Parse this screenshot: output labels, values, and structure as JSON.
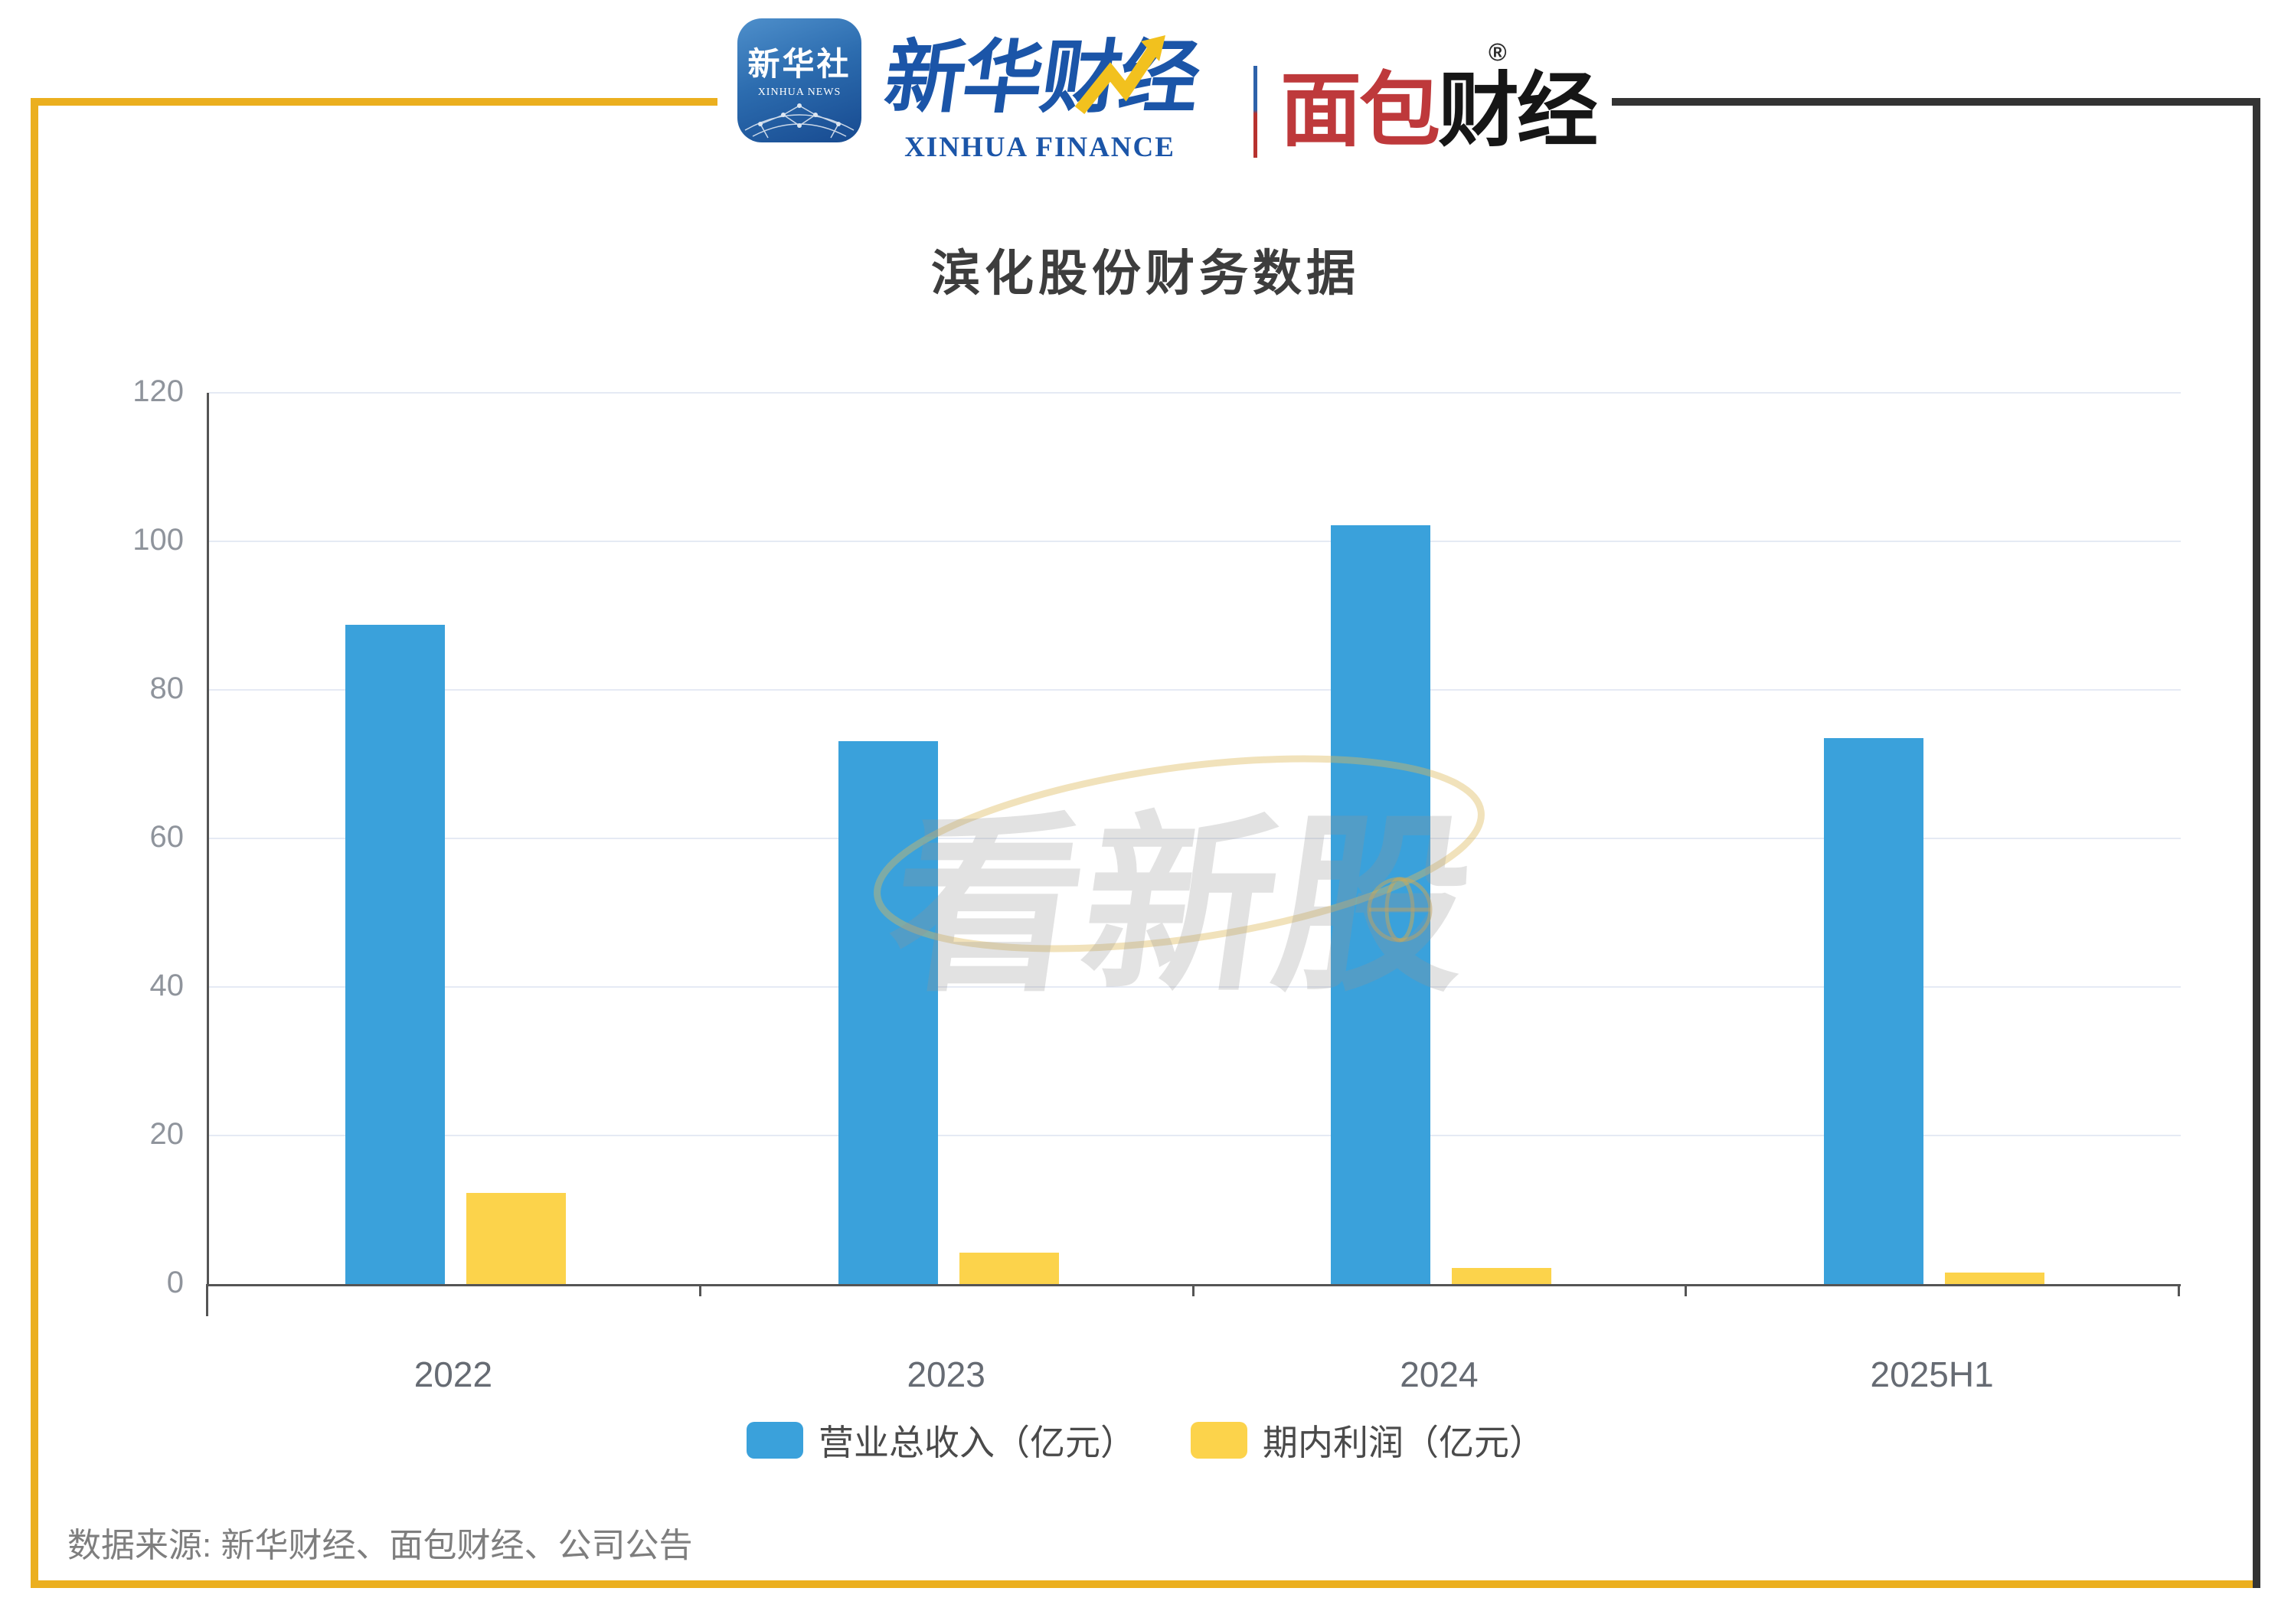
{
  "frame": {
    "yellow": "#EBAF1F",
    "black": "#333333"
  },
  "header": {
    "xinhua_app": {
      "line1": "新华社",
      "line2": "XINHUA NEWS"
    },
    "xinhua_finance": {
      "cn": "新华财经",
      "en": "XINHUA FINANCE"
    },
    "bread_finance": {
      "cn_red": "面包",
      "cn_black": "财经",
      "reg": "®"
    }
  },
  "chart_data": {
    "type": "bar",
    "title": "滨化股份财务数据",
    "categories": [
      "2022",
      "2023",
      "2024",
      "2025H1"
    ],
    "series": [
      {
        "name": "营业总收入（亿元）",
        "color": "#3AA1DB",
        "values": [
          88.8,
          73.1,
          102.2,
          73.5
        ]
      },
      {
        "name": "期内利润（亿元）",
        "color": "#FCD34B",
        "values": [
          12.3,
          4.2,
          2.2,
          1.5
        ]
      }
    ],
    "ylim": [
      0,
      120
    ],
    "yticks": [
      0,
      20,
      40,
      60,
      80,
      100,
      120
    ],
    "grid": true,
    "legend_position": "bottom"
  },
  "watermark": {
    "text": "看新股"
  },
  "footer": {
    "source": "数据来源: 新华财经、面包财经、公司公告"
  }
}
